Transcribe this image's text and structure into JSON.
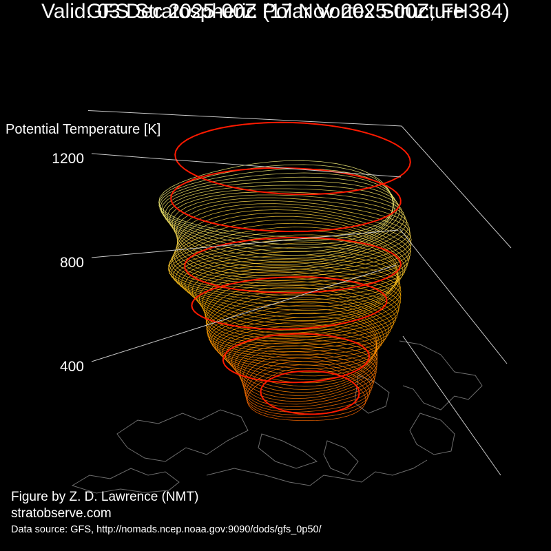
{
  "title_line1": "GFS Stratospheric Polar Vortex Structure",
  "title_line2": "Valid: 03 Dec 2025-00Z  (17 Nov 2025-00Z, FH384)",
  "credits": {
    "author": "Figure by Z. D. Lawrence (NMT)",
    "site": "stratobserve.com",
    "source": "Data source: GFS, http://nomads.ncep.noaa.gov:9090/dods/gfs_0p50/"
  },
  "colors": {
    "background": "#000000",
    "axis": "#c8c8c8",
    "coastline": "#6e6e6e",
    "highlight_contour": "#ff1a00",
    "low_level": "#ff6a00",
    "mid_level": "#ffb000",
    "upper_level": "#f5f07a"
  },
  "chart_data": {
    "type": "3d-isosurface",
    "zlabel": "Potential Temperature [K]",
    "zticks": [
      400,
      800,
      1200
    ],
    "zlim": [
      0,
      1400
    ],
    "grid": false
  }
}
